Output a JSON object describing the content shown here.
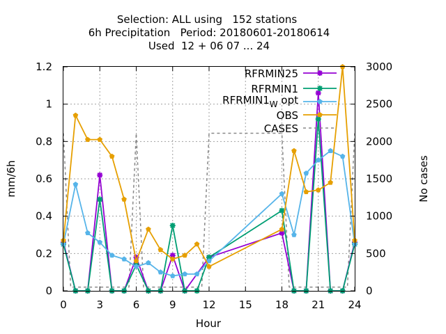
{
  "chart_data": {
    "type": "line",
    "title_lines": [
      "Selection: ALL using   152 stations",
      "6h Precipitation   Period: 20180601-20180614",
      "Used  12 + 06 07 ... 24"
    ],
    "xlabel": "Hour",
    "ylabel": "mm/6h",
    "y2label": "No cases",
    "xlim": [
      0,
      24
    ],
    "ylim": [
      0,
      1.2
    ],
    "y2lim": [
      0,
      3000
    ],
    "xticks": [
      0,
      3,
      6,
      9,
      12,
      15,
      18,
      21,
      24
    ],
    "yticks": [
      0,
      0.2,
      0.4,
      0.6,
      0.8,
      1,
      1.2
    ],
    "yticklabels": [
      "0",
      "0.2",
      "0.4",
      "0.6",
      "0.8",
      "1",
      "1.2"
    ],
    "y2ticks": [
      0,
      500,
      1000,
      1500,
      2000,
      2500,
      3000
    ],
    "grid": true,
    "legend_position": "top-right",
    "series": [
      {
        "name": "RFRMIN25",
        "color": "#9400d3",
        "axis": "y1",
        "marker": "star",
        "x": [
          0,
          1,
          2,
          3,
          4,
          5,
          6,
          7,
          8,
          9,
          10,
          12,
          18,
          19,
          20,
          21,
          22,
          23,
          24
        ],
        "values": [
          0.26,
          0,
          0,
          0.62,
          0,
          0,
          0.18,
          0,
          0,
          0.19,
          0,
          0.18,
          0.31,
          0,
          0,
          1.06,
          0,
          0,
          0.26
        ]
      },
      {
        "name": "RFRMIN1",
        "color": "#009e73",
        "axis": "y1",
        "marker": "star",
        "x": [
          0,
          1,
          2,
          3,
          4,
          5,
          6,
          7,
          8,
          9,
          10,
          11,
          12,
          18,
          19,
          20,
          21,
          22,
          23,
          24
        ],
        "values": [
          0.25,
          0,
          0,
          0.49,
          0,
          0,
          0.14,
          0,
          0,
          0.35,
          0,
          0,
          0.18,
          0.43,
          0,
          0,
          0.92,
          0,
          0,
          0.25
        ]
      },
      {
        "name_main": "RFRMIN1",
        "name_sub": "W",
        "name_tail": " opt",
        "color": "#56b4e9",
        "axis": "y1",
        "marker": "pentagon",
        "x": [
          0,
          1,
          2,
          3,
          4,
          5,
          6,
          7,
          8,
          9,
          10,
          11,
          12,
          18,
          19,
          20,
          21,
          22,
          23,
          24
        ],
        "values": [
          0.25,
          0.57,
          0.31,
          0.26,
          0.19,
          0.17,
          0.13,
          0.15,
          0.1,
          0.08,
          0.09,
          0.09,
          0.16,
          0.52,
          0.3,
          0.63,
          0.7,
          0.75,
          0.72,
          0.25
        ]
      },
      {
        "name": "OBS",
        "color": "#e69f00",
        "axis": "y1",
        "marker": "pentagon",
        "x": [
          0,
          1,
          2,
          3,
          4,
          5,
          6,
          7,
          8,
          9,
          10,
          11,
          12,
          18,
          19,
          20,
          21,
          22,
          23,
          24
        ],
        "values": [
          0.27,
          0.94,
          0.81,
          0.81,
          0.72,
          0.49,
          0.16,
          0.33,
          0.22,
          0.17,
          0.19,
          0.25,
          0.13,
          0.33,
          0.75,
          0.53,
          0.54,
          0.58,
          1.2,
          0.27
        ]
      },
      {
        "name": "CASES",
        "color": "#888888",
        "axis": "y2",
        "dashed": true,
        "x": [
          0,
          0.6,
          5.4,
          6,
          6.6,
          11.4,
          12,
          18,
          18.6,
          23.4,
          24
        ],
        "values": [
          2110,
          50,
          50,
          2110,
          50,
          50,
          2110,
          2110,
          50,
          50,
          2110
        ]
      }
    ]
  }
}
